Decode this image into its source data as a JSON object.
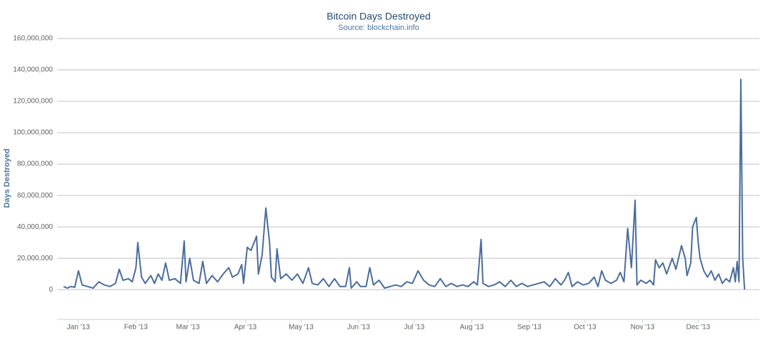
{
  "chart_data": {
    "type": "line",
    "title": "Bitcoin Days Destroyed",
    "subtitle": "Source: blockchain.info",
    "y_label": "Days Destroyed",
    "xlim": [
      -13,
      367
    ],
    "xticks": [
      {
        "value": 0,
        "label": "Jan '13"
      },
      {
        "value": 31,
        "label": "Feb '13"
      },
      {
        "value": 59,
        "label": "Mar '13"
      },
      {
        "value": 90,
        "label": "Apr '13"
      },
      {
        "value": 120,
        "label": "May '13"
      },
      {
        "value": 151,
        "label": "Jun '13"
      },
      {
        "value": 181,
        "label": "Jul '13"
      },
      {
        "value": 212,
        "label": "Aug '13"
      },
      {
        "value": 243,
        "label": "Sep '13"
      },
      {
        "value": 273,
        "label": "Oct '13"
      },
      {
        "value": 304,
        "label": "Nov '13"
      },
      {
        "value": 334,
        "label": "Dec '13"
      }
    ],
    "ylim": [
      -19000000,
      160000000
    ],
    "yticks": [
      0,
      {
        "value": 20000000,
        "label": "20,000,000"
      },
      {
        "value": 40000000,
        "label": "40,000,000"
      },
      {
        "value": 60000000,
        "label": "60,000,000"
      },
      {
        "value": 80000000,
        "label": "80,000,000"
      },
      {
        "value": 100000000,
        "label": "100,000,000"
      },
      {
        "value": 120000000,
        "label": "120,000,000"
      },
      {
        "value": 140000000,
        "label": "140,000,000"
      },
      {
        "value": 160000000,
        "label": "160,000,000"
      }
    ],
    "grid": true,
    "series": [
      {
        "name": "Days Destroyed",
        "color": "#4b6d9c",
        "x": [
          -8,
          -6,
          -4,
          -2,
          0,
          2,
          5,
          8,
          11,
          14,
          17,
          20,
          22,
          24,
          27,
          29,
          31,
          32,
          34,
          36,
          39,
          41,
          43,
          45,
          47,
          49,
          52,
          55,
          57,
          58,
          60,
          62,
          65,
          67,
          69,
          72,
          75,
          78,
          81,
          83,
          86,
          88,
          89,
          91,
          93,
          96,
          97,
          99,
          101,
          103,
          104,
          106,
          107,
          109,
          112,
          115,
          118,
          121,
          124,
          126,
          129,
          132,
          135,
          138,
          141,
          144,
          146,
          147,
          150,
          152,
          155,
          157,
          159,
          162,
          165,
          168,
          171,
          174,
          177,
          180,
          183,
          186,
          189,
          192,
          195,
          198,
          201,
          204,
          207,
          210,
          213,
          215,
          217,
          218,
          221,
          224,
          227,
          230,
          233,
          236,
          239,
          242,
          245,
          248,
          251,
          254,
          257,
          260,
          262,
          264,
          266,
          269,
          272,
          275,
          278,
          280,
          282,
          284,
          287,
          290,
          292,
          294,
          296,
          298,
          300,
          301,
          303,
          306,
          308,
          310,
          311,
          313,
          315,
          317,
          320,
          322,
          325,
          327,
          328,
          330,
          331,
          333,
          334,
          335,
          337,
          339,
          341,
          343,
          345,
          347,
          349,
          351,
          353,
          354,
          355,
          356,
          357,
          358,
          359
        ],
        "values": [
          2000000,
          1000000,
          2000000,
          1500000,
          12000000,
          3000000,
          2000000,
          1000000,
          5000000,
          3000000,
          2000000,
          4000000,
          13000000,
          6000000,
          7000000,
          5000000,
          14000000,
          30000000,
          8000000,
          4000000,
          9000000,
          4000000,
          10000000,
          6000000,
          17000000,
          6000000,
          7000000,
          4000000,
          31000000,
          5000000,
          20000000,
          6000000,
          4000000,
          18000000,
          4000000,
          9000000,
          5000000,
          10000000,
          14000000,
          8000000,
          10000000,
          16000000,
          4000000,
          27000000,
          25000000,
          34000000,
          10000000,
          22000000,
          52000000,
          30000000,
          8000000,
          5000000,
          26000000,
          7000000,
          10000000,
          6000000,
          10000000,
          4000000,
          14000000,
          4000000,
          3000000,
          7000000,
          2000000,
          7000000,
          2000000,
          2000000,
          14000000,
          1000000,
          5000000,
          2000000,
          2000000,
          14000000,
          3000000,
          6000000,
          1000000,
          2000000,
          3000000,
          2000000,
          5000000,
          4000000,
          12000000,
          6000000,
          3000000,
          2000000,
          7000000,
          2000000,
          4000000,
          2000000,
          3000000,
          2000000,
          5000000,
          3000000,
          32000000,
          4000000,
          2000000,
          3000000,
          5000000,
          2000000,
          6000000,
          2000000,
          4000000,
          2000000,
          3000000,
          4000000,
          5000000,
          2000000,
          7000000,
          3000000,
          6000000,
          11000000,
          2000000,
          5000000,
          3000000,
          4000000,
          8000000,
          2000000,
          12000000,
          6000000,
          4000000,
          6000000,
          11000000,
          5000000,
          39000000,
          14000000,
          57000000,
          3000000,
          6000000,
          4000000,
          6000000,
          3000000,
          19000000,
          14000000,
          17000000,
          10000000,
          20000000,
          13000000,
          28000000,
          20000000,
          9000000,
          17000000,
          40000000,
          46000000,
          30000000,
          20000000,
          12000000,
          8000000,
          12000000,
          6000000,
          10000000,
          4000000,
          7000000,
          5000000,
          14000000,
          5000000,
          18000000,
          5000000,
          134000000,
          20000000,
          0
        ]
      }
    ]
  }
}
